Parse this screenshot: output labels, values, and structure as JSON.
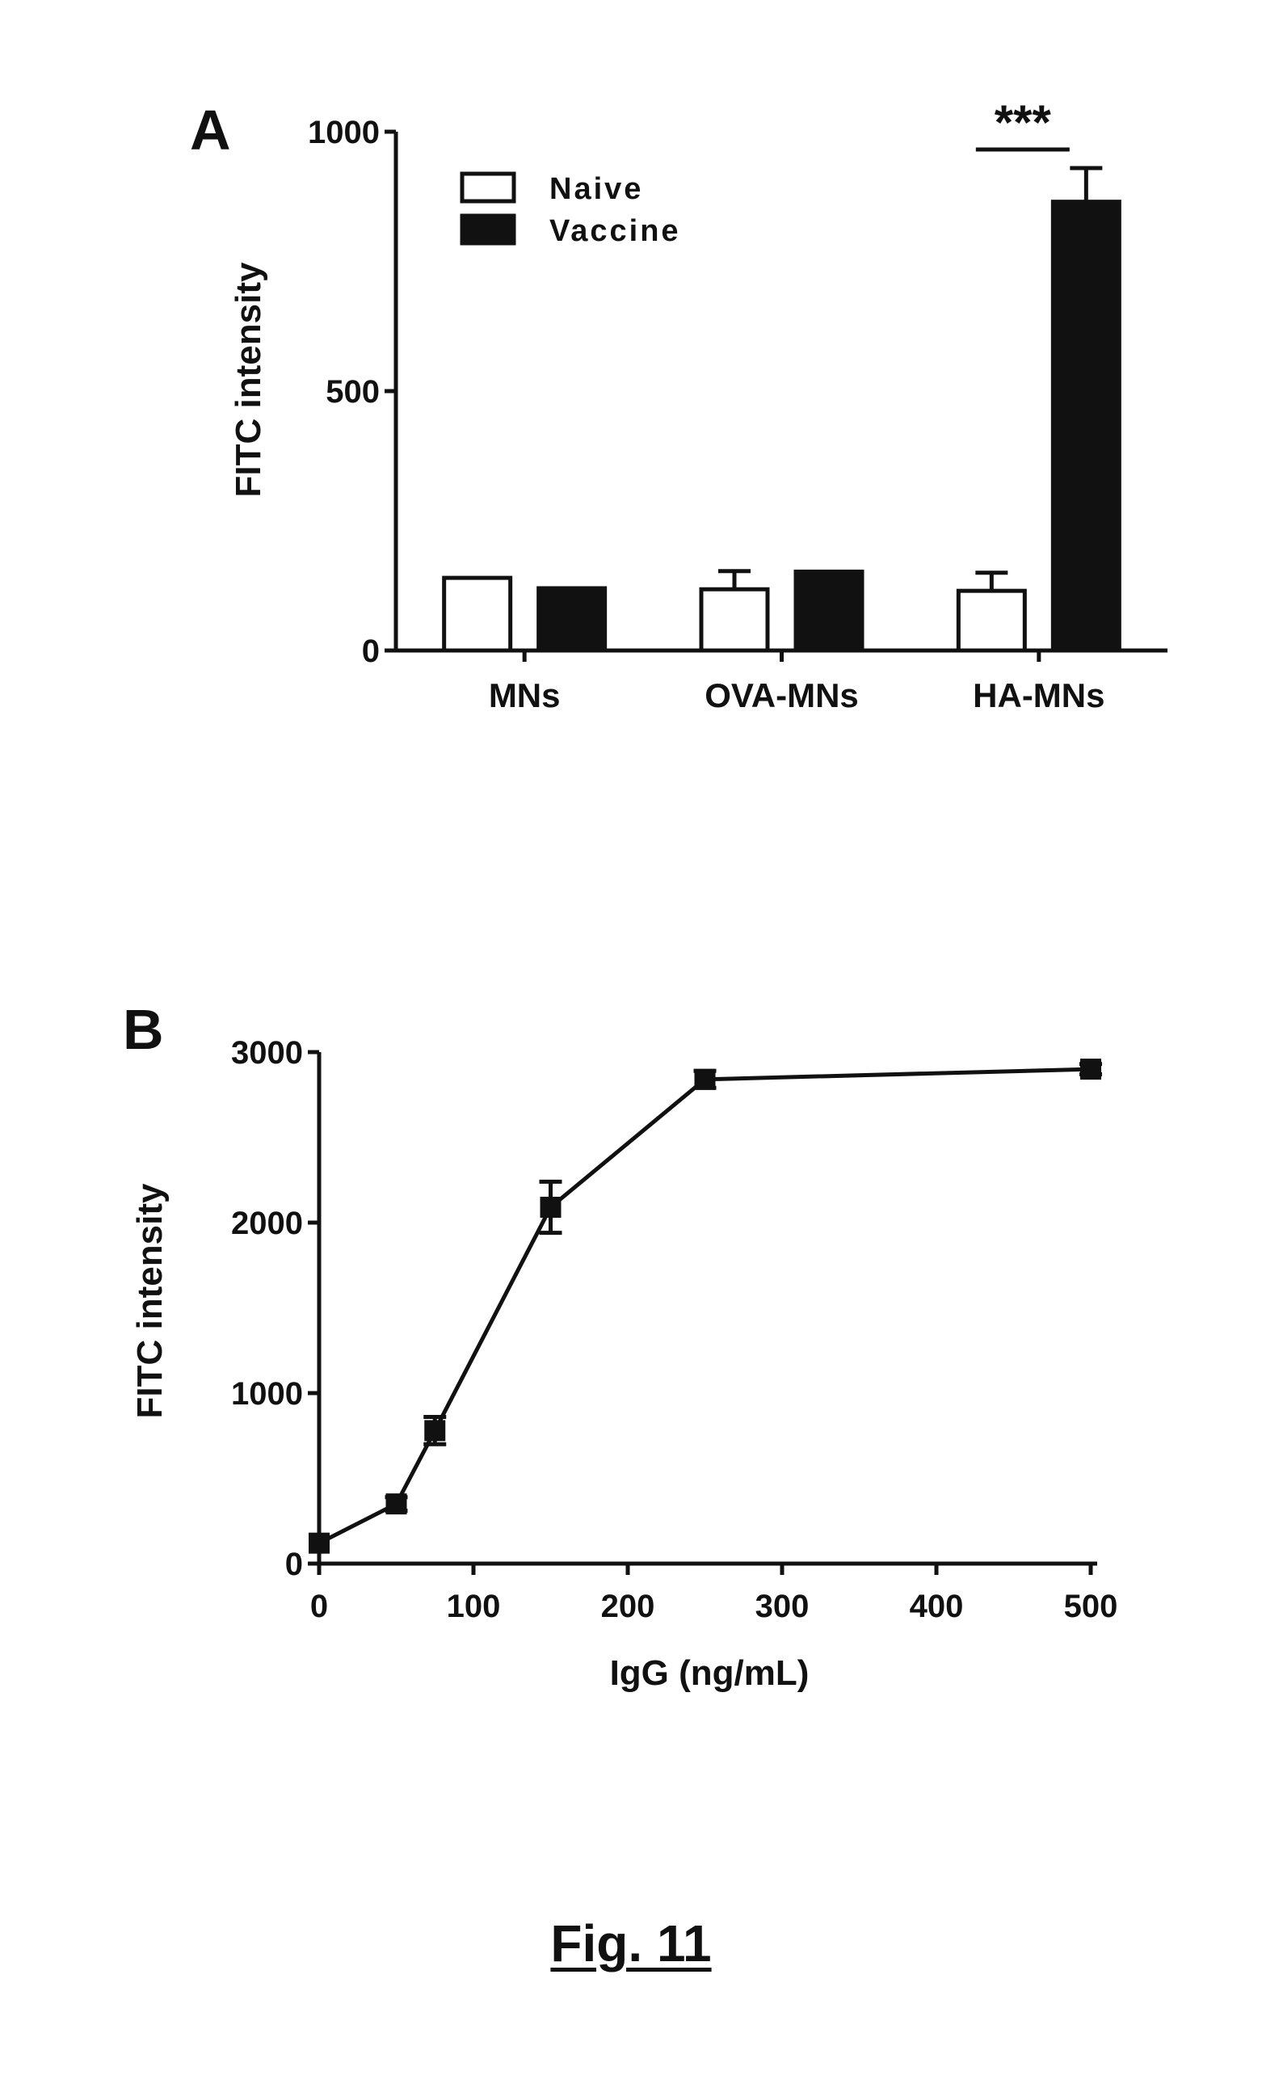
{
  "figure": {
    "caption": "Fig. 11"
  },
  "chart_data": [
    {
      "type": "bar",
      "panel": "A",
      "title": "",
      "xlabel": "",
      "ylabel": "FITC intensity",
      "ylim": [
        0,
        1000
      ],
      "yticks": [
        0,
        500,
        1000
      ],
      "categories": [
        "MNs",
        "OVA-MNs",
        "HA-MNs"
      ],
      "series": [
        {
          "name": "Naive",
          "fill": "white",
          "values": [
            140,
            118,
            115
          ],
          "error": [
            0,
            35,
            35
          ]
        },
        {
          "name": "Vaccine",
          "fill": "black",
          "values": [
            120,
            152,
            865
          ],
          "error": [
            0,
            0,
            65
          ]
        }
      ],
      "legend": {
        "placement": "top-left"
      },
      "annotations": [
        {
          "text": "***",
          "category": "HA-MNs"
        }
      ],
      "grid": false
    },
    {
      "type": "line",
      "panel": "B",
      "title": "",
      "xlabel": "IgG (ng/mL)",
      "ylabel": "FITC intensity",
      "xlim": [
        0,
        500
      ],
      "ylim": [
        0,
        3000
      ],
      "xticks": [
        0,
        100,
        200,
        300,
        400,
        500
      ],
      "yticks": [
        0,
        1000,
        2000,
        3000
      ],
      "x": [
        0,
        50,
        75,
        150,
        250,
        500
      ],
      "y": [
        120,
        350,
        780,
        2090,
        2840,
        2900
      ],
      "error": [
        0,
        40,
        80,
        150,
        50,
        30
      ],
      "marker": "square",
      "grid": false
    }
  ]
}
